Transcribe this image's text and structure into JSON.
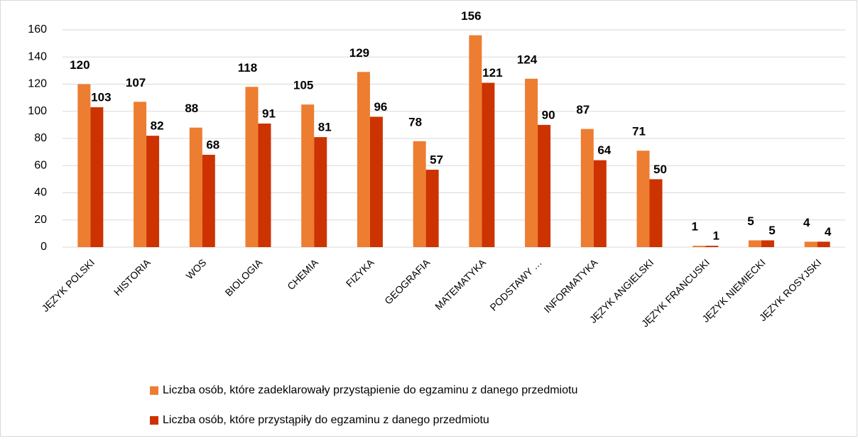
{
  "chart_data": {
    "type": "bar",
    "categories": [
      "JĘZYK POLSKI",
      "HISTORIA",
      "WOS",
      "BIOLOGIA",
      "CHEMIA",
      "FIZYKA",
      "GEOGRAFIA",
      "MATEMATYKA",
      "PODSTAWY …",
      "INFORMATYKA",
      "JĘZYK ANGIELSKI",
      "JĘZYK FRANCUSKI",
      "JĘZYK NIEMIECKI",
      "JĘZYK ROSYJSKI"
    ],
    "series": [
      {
        "name": "Liczba osób, które zadeklarowały przystąpienie do egzaminu z danego przedmiotu",
        "color": "#ed7d31",
        "values": [
          120,
          107,
          88,
          118,
          105,
          129,
          78,
          156,
          124,
          87,
          71,
          1,
          5,
          4
        ]
      },
      {
        "name": "Liczba osób, które przystąpiły do egzaminu z danego przedmiotu",
        "color": "#cc3300",
        "values": [
          103,
          82,
          68,
          91,
          81,
          96,
          57,
          121,
          90,
          64,
          50,
          1,
          5,
          4
        ]
      }
    ],
    "ylim": [
      0,
      160
    ],
    "yticks": [
      0,
      20,
      40,
      60,
      80,
      100,
      120,
      140,
      160
    ],
    "grid": true,
    "legend": "bottom"
  }
}
